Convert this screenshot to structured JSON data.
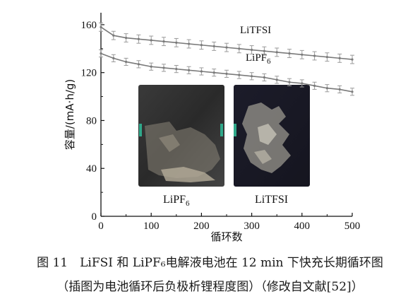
{
  "figure_caption": {
    "line1": "图 11　LiFSI 和 LiPF₆电解液电池在 12 min 下快充长期循环图",
    "line2": "（插图为电池循环后负极析锂程度图）（修改自文献[52]）"
  },
  "inset": {
    "left_label": "LiPF",
    "left_label_sub": "6",
    "right_label": "LiTFSI"
  },
  "chart_data": {
    "type": "line",
    "xlabel": "循环数",
    "ylabel": "容量/(mA·h/g)",
    "xlim": [
      0,
      500
    ],
    "ylim": [
      0,
      170
    ],
    "xticks": [
      0,
      100,
      200,
      300,
      400,
      500
    ],
    "yticks": [
      0,
      40,
      80,
      120,
      160
    ],
    "grid": false,
    "series": [
      {
        "name": "LiTFSI",
        "label_main": "LiTFSI",
        "label_sub": "",
        "color": "#7a7a7a",
        "x": [
          0,
          25,
          50,
          75,
          100,
          125,
          150,
          175,
          200,
          225,
          250,
          275,
          300,
          325,
          350,
          375,
          400,
          425,
          450,
          475,
          500
        ],
        "y": [
          158,
          151,
          149,
          148,
          147,
          146,
          145,
          144,
          143,
          142,
          141,
          140,
          139,
          138,
          137,
          136,
          135,
          134,
          133,
          132,
          131
        ],
        "error": 3.5
      },
      {
        "name": "LiPF6",
        "label_main": "LiPF",
        "label_sub": "6",
        "color": "#7a7a7a",
        "x": [
          0,
          25,
          50,
          75,
          100,
          125,
          150,
          175,
          200,
          225,
          250,
          275,
          300,
          325,
          350,
          375,
          400,
          425,
          450,
          475,
          500
        ],
        "y": [
          136,
          132,
          129,
          127,
          125,
          124,
          123,
          122,
          121,
          120,
          119,
          118,
          117,
          116,
          114,
          112,
          111,
          109,
          107,
          106,
          104
        ],
        "error": 3.0
      }
    ]
  }
}
